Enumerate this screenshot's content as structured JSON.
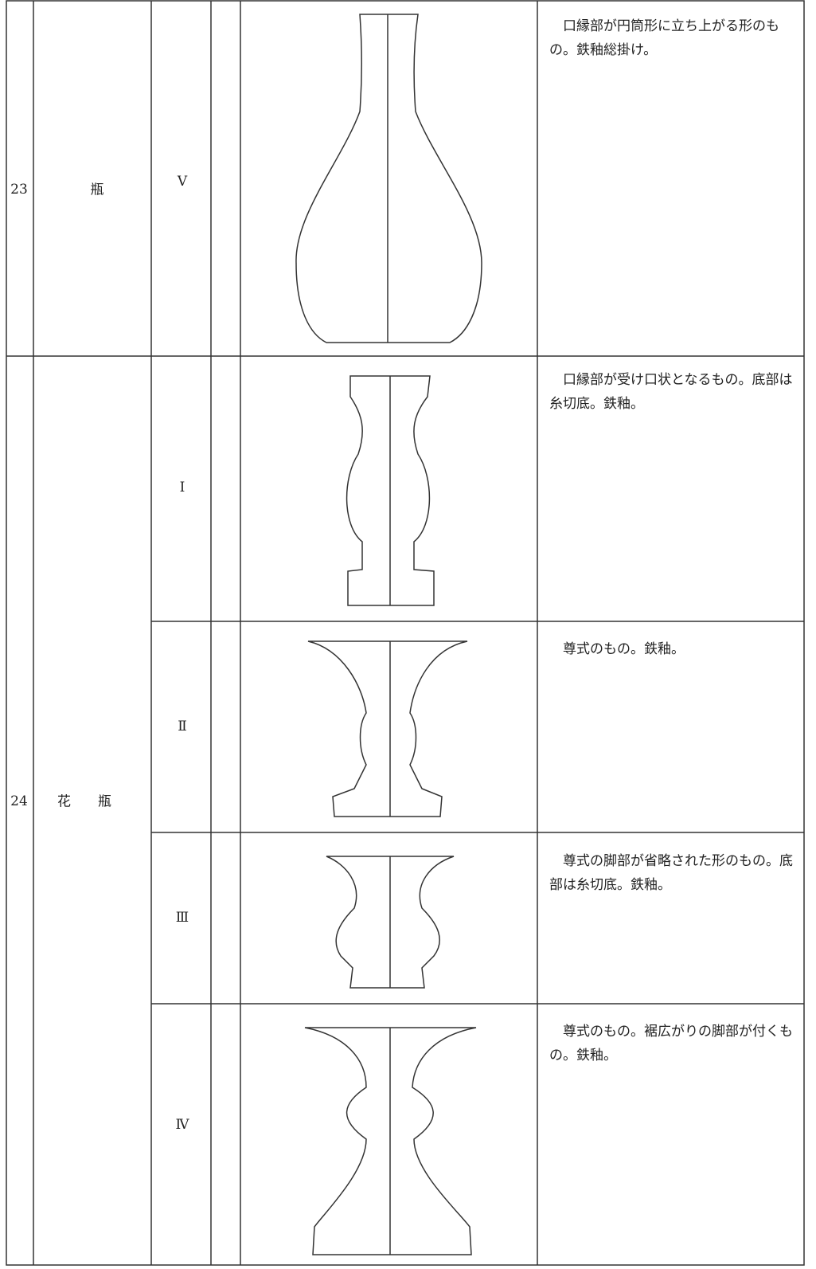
{
  "table": {
    "groups": [
      {
        "no": "23",
        "name": "瓶",
        "variants": [
          {
            "type": "Ⅴ",
            "description": "口縁部が円筒形に立ち上がる形のもの。鉄釉総掛け。"
          }
        ]
      },
      {
        "no": "24",
        "name": "花　　瓶",
        "variants": [
          {
            "type": "Ⅰ",
            "description": "口縁部が受け口状となるもの。底部は糸切底。鉄釉。"
          },
          {
            "type": "Ⅱ",
            "description": "尊式のもの。鉄釉。"
          },
          {
            "type": "Ⅲ",
            "description": "尊式の脚部が省略された形のもの。底部は糸切底。鉄釉。"
          },
          {
            "type": "Ⅳ",
            "description": "尊式のもの。裾広がりの脚部が付くもの。鉄釉。"
          }
        ]
      }
    ]
  }
}
